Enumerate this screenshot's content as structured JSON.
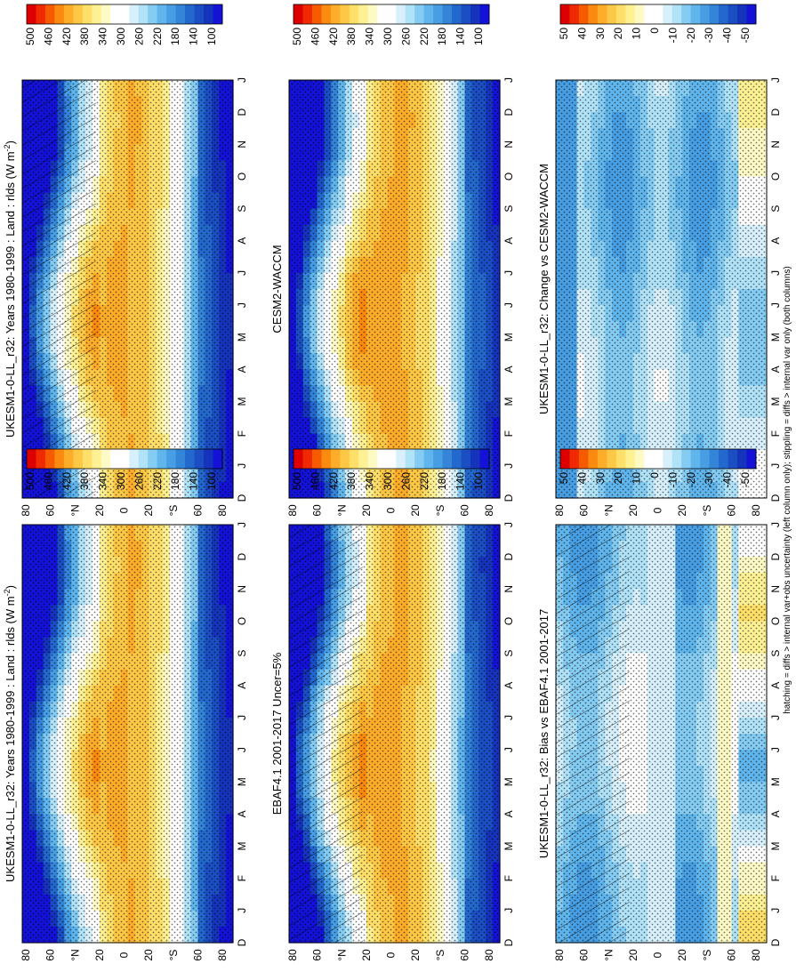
{
  "figure": {
    "footnote": "hatching = diffs > internal var+obs uncertainty (left column only); stippling = diffs > internal var only (both columns)"
  },
  "chart_data": [
    {
      "id": "p1",
      "type": "heatmap",
      "title": "UKESM1-0-LL_r32: Years 1980-1999 : Land : rlds (W m",
      "title_sup": "-2",
      "title_suffix": ")",
      "field": "abs",
      "hatch": true,
      "stipple": true,
      "xlabels": [
        "D",
        "J",
        "F",
        "M",
        "A",
        "M",
        "J",
        "J",
        "A",
        "S",
        "O",
        "N",
        "D",
        "J"
      ],
      "ylabels": [
        "80",
        "60",
        "°N",
        "20",
        "0",
        "20",
        "°S",
        "60",
        "80"
      ],
      "colorbar_labels": [
        "500",
        "460",
        "420",
        "380",
        "340",
        "300",
        "260",
        "220",
        "180",
        "140",
        "100"
      ]
    },
    {
      "id": "p2",
      "type": "heatmap",
      "title": "UKESM1-0-LL_r32: Years 1980-1999 : Land : rlds (W m",
      "title_sup": "-2",
      "title_suffix": ")",
      "field": "abs",
      "hatch": false,
      "stipple": true,
      "xlabels": [
        "D",
        "J",
        "F",
        "M",
        "A",
        "M",
        "J",
        "J",
        "A",
        "S",
        "O",
        "N",
        "D",
        "J"
      ],
      "ylabels": [
        "80",
        "60",
        "°N",
        "20",
        "0",
        "20",
        "°S",
        "60",
        "80"
      ],
      "colorbar_labels": [
        "500",
        "460",
        "420",
        "380",
        "340",
        "300",
        "260",
        "220",
        "180",
        "140",
        "100"
      ]
    },
    {
      "id": "p3",
      "type": "heatmap",
      "title": "EBAF4.1 2001-2017 Uncer=5%",
      "field": "obs",
      "hatch": true,
      "stipple": true,
      "xlabels": [
        "D",
        "J",
        "F",
        "M",
        "A",
        "M",
        "J",
        "J",
        "A",
        "S",
        "O",
        "N",
        "D",
        "J"
      ],
      "ylabels": [
        "80",
        "60",
        "°N",
        "20",
        "0",
        "20",
        "°S",
        "60",
        "80"
      ],
      "colorbar_labels": [
        "500",
        "460",
        "420",
        "380",
        "340",
        "300",
        "260",
        "220",
        "180",
        "140",
        "100"
      ]
    },
    {
      "id": "p4",
      "type": "heatmap",
      "title": "CESM2-WACCM",
      "field": "abs2",
      "hatch": false,
      "stipple": true,
      "xlabels": [
        "D",
        "J",
        "F",
        "M",
        "A",
        "M",
        "J",
        "J",
        "A",
        "S",
        "O",
        "N",
        "D",
        "J"
      ],
      "ylabels": [
        "80",
        "60",
        "°N",
        "20",
        "0",
        "20",
        "°S",
        "60",
        "80"
      ],
      "colorbar_labels": [
        "500",
        "460",
        "420",
        "380",
        "340",
        "300",
        "260",
        "220",
        "180",
        "140",
        "100"
      ]
    },
    {
      "id": "p5",
      "type": "heatmap",
      "title": "UKESM1-0-LL_r32: Bias vs EBAF4.1 2001-2017",
      "field": "bias",
      "hatch": true,
      "stipple": true,
      "xlabels": [
        "D",
        "J",
        "F",
        "M",
        "A",
        "M",
        "J",
        "J",
        "A",
        "S",
        "O",
        "N",
        "D",
        "J"
      ],
      "ylabels": [
        "80",
        "60",
        "°N",
        "20",
        "0",
        "20",
        "°S",
        "60",
        "80"
      ],
      "colorbar_labels": [
        "50",
        "40",
        "30",
        "20",
        "10",
        "0",
        "-10",
        "-20",
        "-30",
        "-40",
        "-50"
      ]
    },
    {
      "id": "p6",
      "type": "heatmap",
      "title": "UKESM1-0-LL_r32: Change vs CESM2-WACCM",
      "field": "change",
      "hatch": false,
      "stipple": true,
      "xlabels": [
        "D",
        "J",
        "F",
        "M",
        "A",
        "M",
        "J",
        "J",
        "A",
        "S",
        "O",
        "N",
        "D",
        "J"
      ],
      "ylabels": [
        "80",
        "60",
        "°N",
        "20",
        "0",
        "20",
        "°S",
        "60",
        "80"
      ],
      "colorbar_labels": [
        "50",
        "40",
        "30",
        "20",
        "10",
        "0",
        "-10",
        "-20",
        "-30",
        "-40",
        "-50"
      ]
    }
  ],
  "palettes": {
    "warm_to_cool": [
      "#de0000",
      "#ef2a00",
      "#f75b00",
      "#fb8a10",
      "#fdad2a",
      "#fdc845",
      "#fedf69",
      "#fef193",
      "#fefac6",
      "#ffffff",
      "#ffffff",
      "#d8f0fb",
      "#b0e2f8",
      "#85ccf3",
      "#5fb5ec",
      "#479ee3",
      "#3484d8",
      "#2368cc",
      "#1a4ec2",
      "#1533bb",
      "#1412d6"
    ],
    "masked": "#ffffff"
  }
}
